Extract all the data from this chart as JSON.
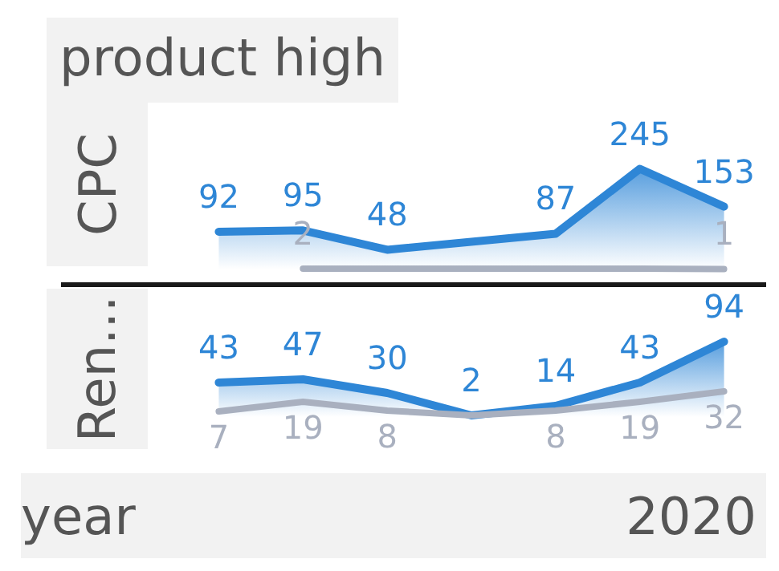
{
  "chart_data": [
    {
      "type": "area",
      "title": "product high",
      "ylabel": "CPC",
      "categories": [
        null,
        null,
        null,
        null,
        null,
        null,
        null
      ],
      "tick_labels": false,
      "grid": false,
      "marker": "none",
      "series": [
        {
          "color": "#2e86d6",
          "values": [
            92,
            95,
            48,
            null,
            87,
            245,
            153
          ],
          "value_labels": [
            "92",
            "95",
            "48",
            null,
            "87",
            "245",
            "153"
          ]
        },
        {
          "type": "line",
          "color": "#a9b0bf",
          "values": [
            null,
            2,
            2,
            2,
            2,
            2,
            1
          ],
          "value_labels": [
            null,
            "2",
            null,
            null,
            null,
            null,
            "1"
          ]
        }
      ]
    },
    {
      "type": "area",
      "ylabel": "Ren...",
      "xlabel": "year",
      "annotations": [
        "2020"
      ],
      "categories": [
        null,
        null,
        null,
        null,
        null,
        null,
        null
      ],
      "tick_labels": false,
      "grid": false,
      "marker": "none",
      "series": [
        {
          "color": "#2e86d6",
          "values": [
            43,
            47,
            30,
            2,
            14,
            43,
            94
          ],
          "value_labels": [
            "43",
            "47",
            "30",
            "2",
            "14",
            "43",
            "94"
          ]
        },
        {
          "type": "line",
          "color": "#a9b0bf",
          "values": [
            7,
            19,
            8,
            2,
            8,
            19,
            32
          ],
          "value_labels": [
            "7",
            "19",
            "8",
            null,
            "8",
            "19",
            "32"
          ]
        }
      ]
    }
  ]
}
